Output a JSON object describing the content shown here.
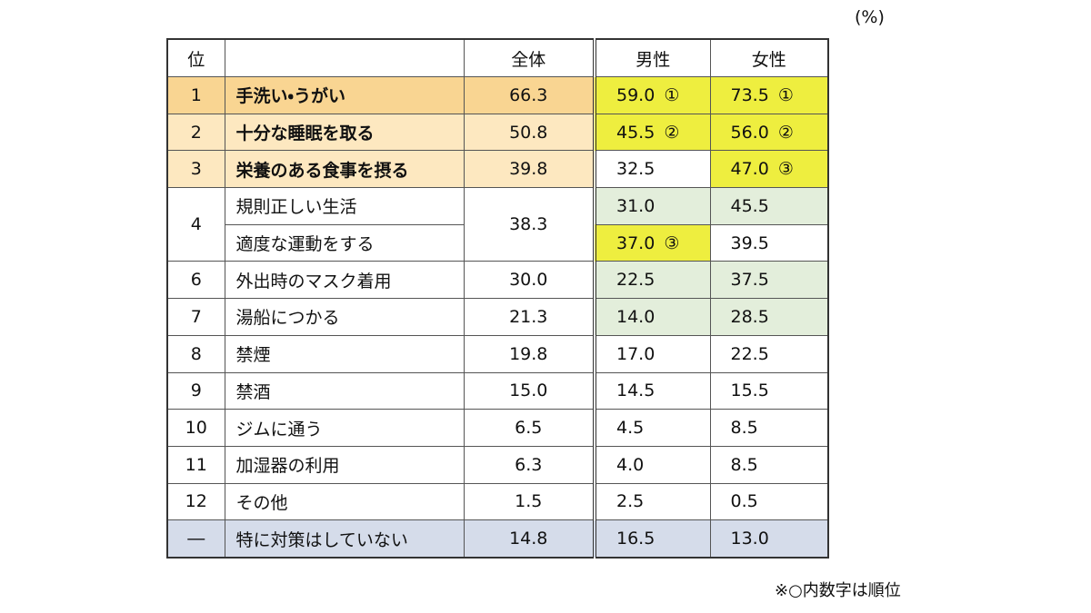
{
  "unit": "(%)",
  "table": {
    "header": {
      "rank": "位",
      "total": "全体",
      "male": "男性",
      "female": "女性"
    },
    "rows": [
      {
        "rank": "1",
        "item": "手洗い・うがい",
        "total": "66.3",
        "male": "59.0",
        "male_rank": "①",
        "female": "73.5",
        "female_rank": "①"
      },
      {
        "rank": "2",
        "item": "十分な睡眠を取る",
        "total": "50.8",
        "male": "45.5",
        "male_rank": "②",
        "female": "56.0",
        "female_rank": "②"
      },
      {
        "rank": "3",
        "item": "栄養のある食事を摂る",
        "total": "39.8",
        "male": "32.5",
        "female": "47.0",
        "female_rank": "③"
      },
      {
        "rank": "4",
        "item": "規則正しい生活",
        "total": "38.3",
        "male": "31.0",
        "female": "45.5"
      },
      {
        "item": "適度な運動をする",
        "male": "37.0",
        "male_rank": "③",
        "female": "39.5"
      },
      {
        "rank": "6",
        "item": "外出時のマスク着用",
        "total": "30.0",
        "male": "22.5",
        "female": "37.5"
      },
      {
        "rank": "7",
        "item": "湯船につかる",
        "total": "21.3",
        "male": "14.0",
        "female": "28.5"
      },
      {
        "rank": "8",
        "item": "禁煙",
        "total": "19.8",
        "male": "17.0",
        "female": "22.5"
      },
      {
        "rank": "9",
        "item": "禁酒",
        "total": "15.0",
        "male": "14.5",
        "female": "15.5"
      },
      {
        "rank": "10",
        "item": "ジムに通う",
        "total": "6.5",
        "male": "4.5",
        "female": "8.5"
      },
      {
        "rank": "11",
        "item": "加湿器の利用",
        "total": "6.3",
        "male": "4.0",
        "female": "8.5"
      },
      {
        "rank": "12",
        "item": "その他",
        "total": "1.5",
        "male": "2.5",
        "female": "0.5"
      },
      {
        "rank": "―",
        "item": "特に対策はしていない",
        "total": "14.8",
        "male": "16.5",
        "female": "13.0"
      }
    ]
  },
  "note": "※○内数字は順位"
}
